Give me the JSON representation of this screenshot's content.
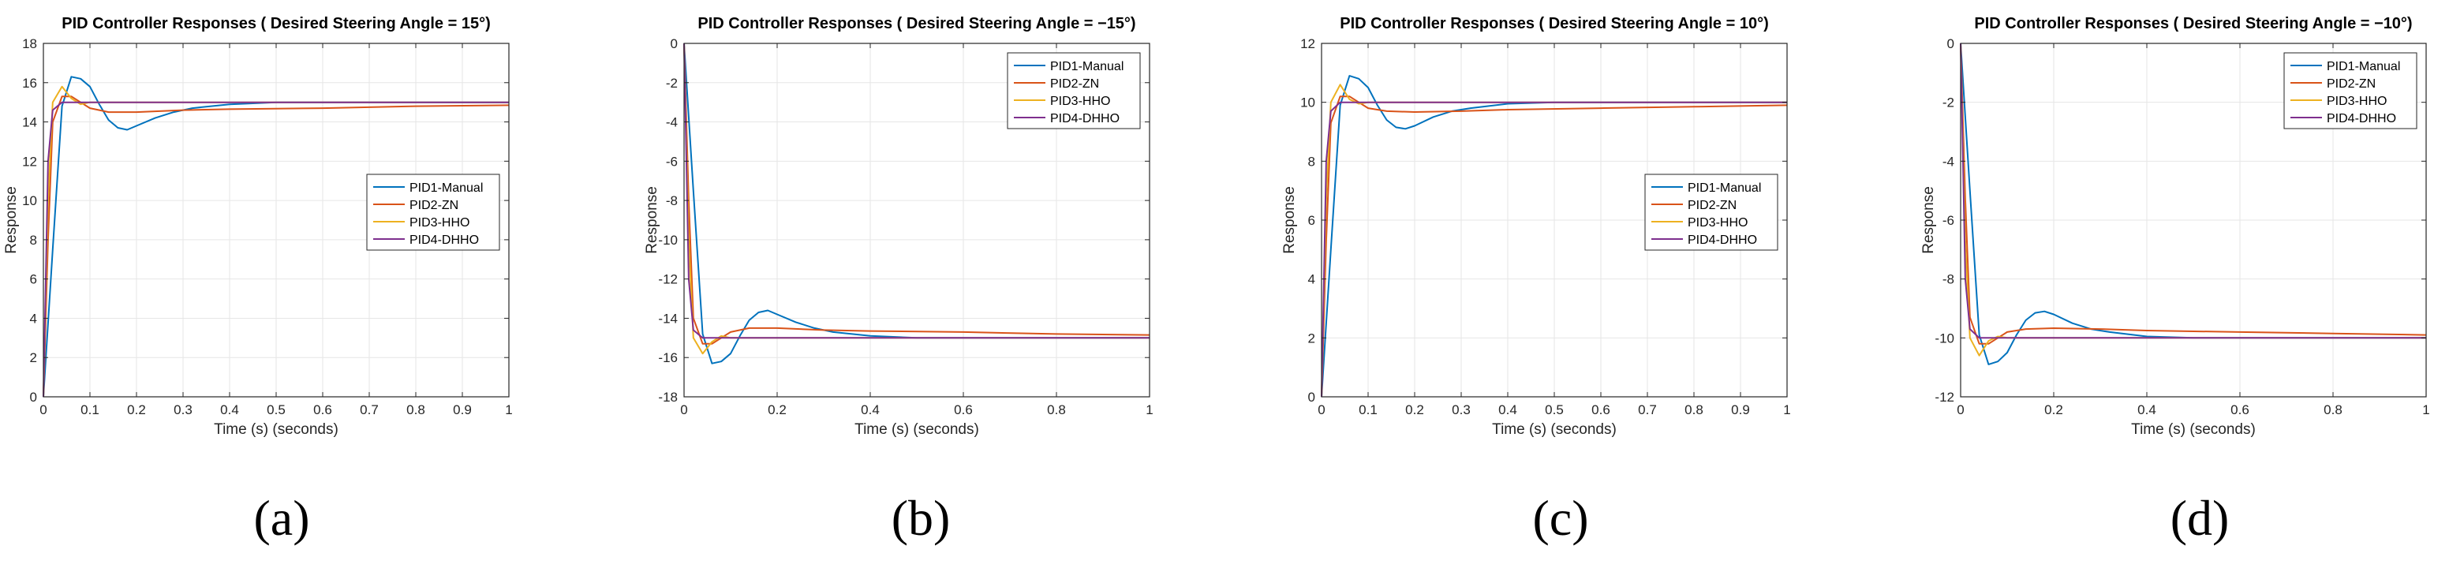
{
  "colors": {
    "PID1": "#0072BD",
    "PID2": "#D95319",
    "PID3": "#EDB120",
    "PID4": "#7E2F8E",
    "grid": "#e6e6e6",
    "axis": "#262626"
  },
  "chart_data": [
    {
      "type": "line",
      "label": "(a)",
      "title": "PID Controller Responses ( Desired Steering Angle = 15°)",
      "xlabel": "Time (s) (seconds)",
      "ylabel": "Response",
      "xlim": [
        0,
        1
      ],
      "ylim": [
        0,
        18
      ],
      "xticks": [
        0,
        0.1,
        0.2,
        0.3,
        0.4,
        0.5,
        0.6,
        0.7,
        0.8,
        0.9,
        1
      ],
      "xtick_labels": [
        "0",
        "0.1",
        "0.2",
        "0.3",
        "0.4",
        "0.5",
        "0.6",
        "0.7",
        "0.8",
        "0.9",
        "1"
      ],
      "yticks": [
        0,
        2,
        4,
        6,
        8,
        10,
        12,
        14,
        16,
        18
      ],
      "ytick_labels": [
        "0",
        "2",
        "4",
        "6",
        "8",
        "10",
        "12",
        "14",
        "16",
        "18"
      ],
      "grid": true,
      "legend_position": "center-right",
      "series": [
        {
          "name": "PID1-Manual",
          "color_key": "PID1",
          "x": [
            0,
            0.02,
            0.04,
            0.06,
            0.08,
            0.1,
            0.12,
            0.14,
            0.16,
            0.18,
            0.2,
            0.24,
            0.28,
            0.32,
            0.4,
            0.5,
            0.6,
            0.8,
            1.0
          ],
          "y": [
            0,
            7.5,
            14.8,
            16.3,
            16.2,
            15.8,
            14.9,
            14.1,
            13.7,
            13.6,
            13.8,
            14.2,
            14.5,
            14.7,
            14.9,
            15.0,
            15.0,
            15.0,
            15.0
          ]
        },
        {
          "name": "PID2-ZN",
          "color_key": "PID2",
          "x": [
            0,
            0.01,
            0.02,
            0.04,
            0.06,
            0.08,
            0.1,
            0.14,
            0.2,
            0.3,
            0.4,
            0.6,
            0.8,
            1.0
          ],
          "y": [
            0,
            8.0,
            14.0,
            15.3,
            15.3,
            15.0,
            14.7,
            14.5,
            14.5,
            14.6,
            14.65,
            14.7,
            14.8,
            14.85
          ]
        },
        {
          "name": "PID3-HHO",
          "color_key": "PID3",
          "x": [
            0,
            0.01,
            0.02,
            0.04,
            0.06,
            0.08,
            0.1,
            0.14,
            0.2,
            0.3,
            0.5,
            1.0
          ],
          "y": [
            0,
            10.0,
            15.0,
            15.8,
            15.2,
            14.9,
            15.0,
            15.0,
            15.0,
            15.0,
            15.0,
            15.0
          ]
        },
        {
          "name": "PID4-DHHO",
          "color_key": "PID4",
          "x": [
            0,
            0.005,
            0.01,
            0.02,
            0.04,
            0.06,
            0.1,
            0.2,
            0.5,
            1.0
          ],
          "y": [
            0,
            6.0,
            12.0,
            14.6,
            15.0,
            15.0,
            15.0,
            15.0,
            15.0,
            15.0
          ]
        }
      ]
    },
    {
      "type": "line",
      "label": "(b)",
      "title": "PID Controller Responses ( Desired Steering Angle = −15°)",
      "xlabel": "Time (s) (seconds)",
      "ylabel": "Response",
      "xlim": [
        0,
        1
      ],
      "ylim": [
        -18,
        0
      ],
      "xticks": [
        0,
        0.2,
        0.4,
        0.6,
        0.8,
        1
      ],
      "xtick_labels": [
        "0",
        "0.2",
        "0.4",
        "0.6",
        "0.8",
        "1"
      ],
      "yticks": [
        -18,
        -16,
        -14,
        -12,
        -10,
        -8,
        -6,
        -4,
        -2,
        0
      ],
      "ytick_labels": [
        "-18",
        "-16",
        "-14",
        "-12",
        "-10",
        "-8",
        "-6",
        "-4",
        "-2",
        "0"
      ],
      "grid": true,
      "legend_position": "top-right",
      "series": [
        {
          "name": "PID1-Manual",
          "color_key": "PID1",
          "x": [
            0,
            0.02,
            0.04,
            0.06,
            0.08,
            0.1,
            0.12,
            0.14,
            0.16,
            0.18,
            0.2,
            0.24,
            0.28,
            0.32,
            0.4,
            0.5,
            0.6,
            0.8,
            1.0
          ],
          "y": [
            0,
            -7.5,
            -14.8,
            -16.3,
            -16.2,
            -15.8,
            -14.9,
            -14.1,
            -13.7,
            -13.6,
            -13.8,
            -14.2,
            -14.5,
            -14.7,
            -14.9,
            -15.0,
            -15.0,
            -15.0,
            -15.0
          ]
        },
        {
          "name": "PID2-ZN",
          "color_key": "PID2",
          "x": [
            0,
            0.01,
            0.02,
            0.04,
            0.06,
            0.08,
            0.1,
            0.14,
            0.2,
            0.3,
            0.4,
            0.6,
            0.8,
            1.0
          ],
          "y": [
            0,
            -8.0,
            -14.0,
            -15.3,
            -15.3,
            -15.0,
            -14.7,
            -14.5,
            -14.5,
            -14.6,
            -14.65,
            -14.7,
            -14.8,
            -14.85
          ]
        },
        {
          "name": "PID3-HHO",
          "color_key": "PID3",
          "x": [
            0,
            0.01,
            0.02,
            0.04,
            0.06,
            0.08,
            0.1,
            0.14,
            0.2,
            0.3,
            0.5,
            1.0
          ],
          "y": [
            0,
            -10.0,
            -15.0,
            -15.8,
            -15.2,
            -14.9,
            -15.0,
            -15.0,
            -15.0,
            -15.0,
            -15.0,
            -15.0
          ]
        },
        {
          "name": "PID4-DHHO",
          "color_key": "PID4",
          "x": [
            0,
            0.005,
            0.01,
            0.02,
            0.04,
            0.06,
            0.1,
            0.2,
            0.5,
            1.0
          ],
          "y": [
            0,
            -6.0,
            -12.0,
            -14.6,
            -15.0,
            -15.0,
            -15.0,
            -15.0,
            -15.0,
            -15.0
          ]
        }
      ]
    },
    {
      "type": "line",
      "label": "(c)",
      "title": "PID Controller Responses ( Desired Steering Angle = 10°)",
      "xlabel": "Time (s) (seconds)",
      "ylabel": "Response",
      "xlim": [
        0,
        1
      ],
      "ylim": [
        0,
        12
      ],
      "xticks": [
        0,
        0.1,
        0.2,
        0.3,
        0.4,
        0.5,
        0.6,
        0.7,
        0.8,
        0.9,
        1
      ],
      "xtick_labels": [
        "0",
        "0.1",
        "0.2",
        "0.3",
        "0.4",
        "0.5",
        "0.6",
        "0.7",
        "0.8",
        "0.9",
        "1"
      ],
      "yticks": [
        0,
        2,
        4,
        6,
        8,
        10,
        12
      ],
      "ytick_labels": [
        "0",
        "2",
        "4",
        "6",
        "8",
        "10",
        "12"
      ],
      "grid": true,
      "legend_position": "center-right",
      "series": [
        {
          "name": "PID1-Manual",
          "color_key": "PID1",
          "x": [
            0,
            0.02,
            0.04,
            0.06,
            0.08,
            0.1,
            0.12,
            0.14,
            0.16,
            0.18,
            0.2,
            0.24,
            0.28,
            0.32,
            0.4,
            0.5,
            0.6,
            0.8,
            1.0
          ],
          "y": [
            0,
            5.0,
            9.9,
            10.9,
            10.8,
            10.5,
            9.9,
            9.4,
            9.15,
            9.1,
            9.2,
            9.5,
            9.7,
            9.8,
            9.95,
            10.0,
            10.0,
            10.0,
            10.0
          ]
        },
        {
          "name": "PID2-ZN",
          "color_key": "PID2",
          "x": [
            0,
            0.01,
            0.02,
            0.04,
            0.06,
            0.08,
            0.1,
            0.14,
            0.2,
            0.3,
            0.4,
            0.6,
            0.8,
            1.0
          ],
          "y": [
            0,
            5.3,
            9.3,
            10.2,
            10.2,
            10.0,
            9.8,
            9.7,
            9.67,
            9.7,
            9.75,
            9.8,
            9.85,
            9.9
          ]
        },
        {
          "name": "PID3-HHO",
          "color_key": "PID3",
          "x": [
            0,
            0.01,
            0.02,
            0.04,
            0.06,
            0.08,
            0.1,
            0.14,
            0.2,
            0.3,
            0.5,
            1.0
          ],
          "y": [
            0,
            6.7,
            10.0,
            10.6,
            10.1,
            9.95,
            10.0,
            10.0,
            10.0,
            10.0,
            10.0,
            10.0
          ]
        },
        {
          "name": "PID4-DHHO",
          "color_key": "PID4",
          "x": [
            0,
            0.005,
            0.01,
            0.02,
            0.04,
            0.06,
            0.1,
            0.2,
            0.5,
            1.0
          ],
          "y": [
            0,
            4.0,
            8.0,
            9.7,
            10.0,
            10.0,
            10.0,
            10.0,
            10.0,
            10.0
          ]
        }
      ]
    },
    {
      "type": "line",
      "label": "(d)",
      "title": "PID Controller Responses ( Desired Steering Angle = −10°)",
      "xlabel": "Time (s) (seconds)",
      "ylabel": "Response",
      "xlim": [
        0,
        1
      ],
      "ylim": [
        -12,
        0
      ],
      "xticks": [
        0,
        0.2,
        0.4,
        0.6,
        0.8,
        1
      ],
      "xtick_labels": [
        "0",
        "0.2",
        "0.4",
        "0.6",
        "0.8",
        "1"
      ],
      "yticks": [
        -12,
        -10,
        -8,
        -6,
        -4,
        -2,
        0
      ],
      "ytick_labels": [
        "-12",
        "-10",
        "-8",
        "-6",
        "-4",
        "-2",
        "0"
      ],
      "grid": true,
      "legend_position": "top-right",
      "series": [
        {
          "name": "PID1-Manual",
          "color_key": "PID1",
          "x": [
            0,
            0.02,
            0.04,
            0.06,
            0.08,
            0.1,
            0.12,
            0.14,
            0.16,
            0.18,
            0.2,
            0.24,
            0.28,
            0.32,
            0.4,
            0.5,
            0.6,
            0.8,
            1.0
          ],
          "y": [
            0,
            -5.0,
            -9.9,
            -10.9,
            -10.8,
            -10.5,
            -9.9,
            -9.4,
            -9.15,
            -9.1,
            -9.2,
            -9.5,
            -9.7,
            -9.8,
            -9.95,
            -10.0,
            -10.0,
            -10.0,
            -10.0
          ]
        },
        {
          "name": "PID2-ZN",
          "color_key": "PID2",
          "x": [
            0,
            0.01,
            0.02,
            0.04,
            0.06,
            0.08,
            0.1,
            0.14,
            0.2,
            0.3,
            0.4,
            0.6,
            0.8,
            1.0
          ],
          "y": [
            0,
            -5.3,
            -9.3,
            -10.2,
            -10.2,
            -10.0,
            -9.8,
            -9.7,
            -9.67,
            -9.7,
            -9.75,
            -9.8,
            -9.85,
            -9.9
          ]
        },
        {
          "name": "PID3-HHO",
          "color_key": "PID3",
          "x": [
            0,
            0.01,
            0.02,
            0.04,
            0.06,
            0.08,
            0.1,
            0.14,
            0.2,
            0.3,
            0.5,
            1.0
          ],
          "y": [
            0,
            -6.7,
            -10.0,
            -10.6,
            -10.1,
            -9.95,
            -10.0,
            -10.0,
            -10.0,
            -10.0,
            -10.0,
            -10.0
          ]
        },
        {
          "name": "PID4-DHHO",
          "color_key": "PID4",
          "x": [
            0,
            0.005,
            0.01,
            0.02,
            0.04,
            0.06,
            0.1,
            0.2,
            0.5,
            1.0
          ],
          "y": [
            0,
            -4.0,
            -8.0,
            -9.7,
            -10.0,
            -10.0,
            -10.0,
            -10.0,
            -10.0,
            -10.0
          ]
        }
      ]
    }
  ]
}
